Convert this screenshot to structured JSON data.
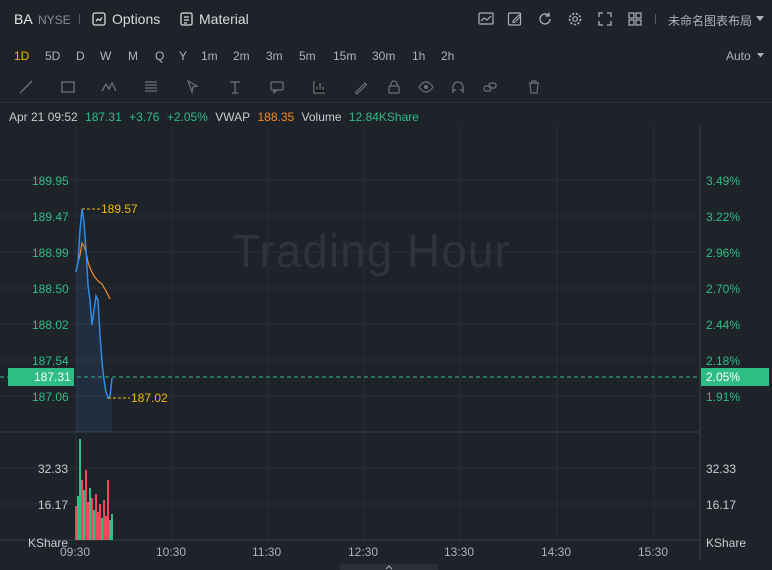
{
  "header": {
    "symbol": "BA",
    "exchange": "NYSE",
    "options_label": "Options",
    "material_label": "Material",
    "layout_label": "未命名图表布局"
  },
  "periods": {
    "items": [
      "1D",
      "5D",
      "D",
      "W",
      "M",
      "Q",
      "Y",
      "1m",
      "2m",
      "3m",
      "5m",
      "15m",
      "30m",
      "1h",
      "2h"
    ],
    "active": "1D",
    "scale_mode": "Auto"
  },
  "info": {
    "datetime": "Apr 21 09:52",
    "price": "187.31",
    "change": "+3.76",
    "change_pct": "+2.05%",
    "vwap_label": "VWAP",
    "vwap_value": "188.35",
    "volume_label": "Volume",
    "volume_value": "12.84KShare"
  },
  "chart": {
    "watermark": "Trading Hour",
    "price_axis": [
      "189.95",
      "189.47",
      "188.99",
      "188.50",
      "188.02",
      "187.54",
      "187.06"
    ],
    "pct_axis": [
      "3.49%",
      "3.22%",
      "2.96%",
      "2.70%",
      "2.44%",
      "2.18%",
      "1.91%"
    ],
    "current_price": "187.31",
    "current_pct": "2.05%",
    "high_marker": "189.57",
    "low_marker": "187.02",
    "volume_axis": [
      "32.33",
      "16.17"
    ],
    "volume_unit": "KShare",
    "time_axis": [
      "09:30",
      "10:30",
      "11:30",
      "12:30",
      "13:30",
      "14:30",
      "15:30"
    ],
    "colors": {
      "up": "#2ebd85",
      "down": "#f6465d",
      "price_line": "#2f8be6",
      "vwap_line": "#f28c28",
      "marker": "#f0b90b"
    }
  }
}
